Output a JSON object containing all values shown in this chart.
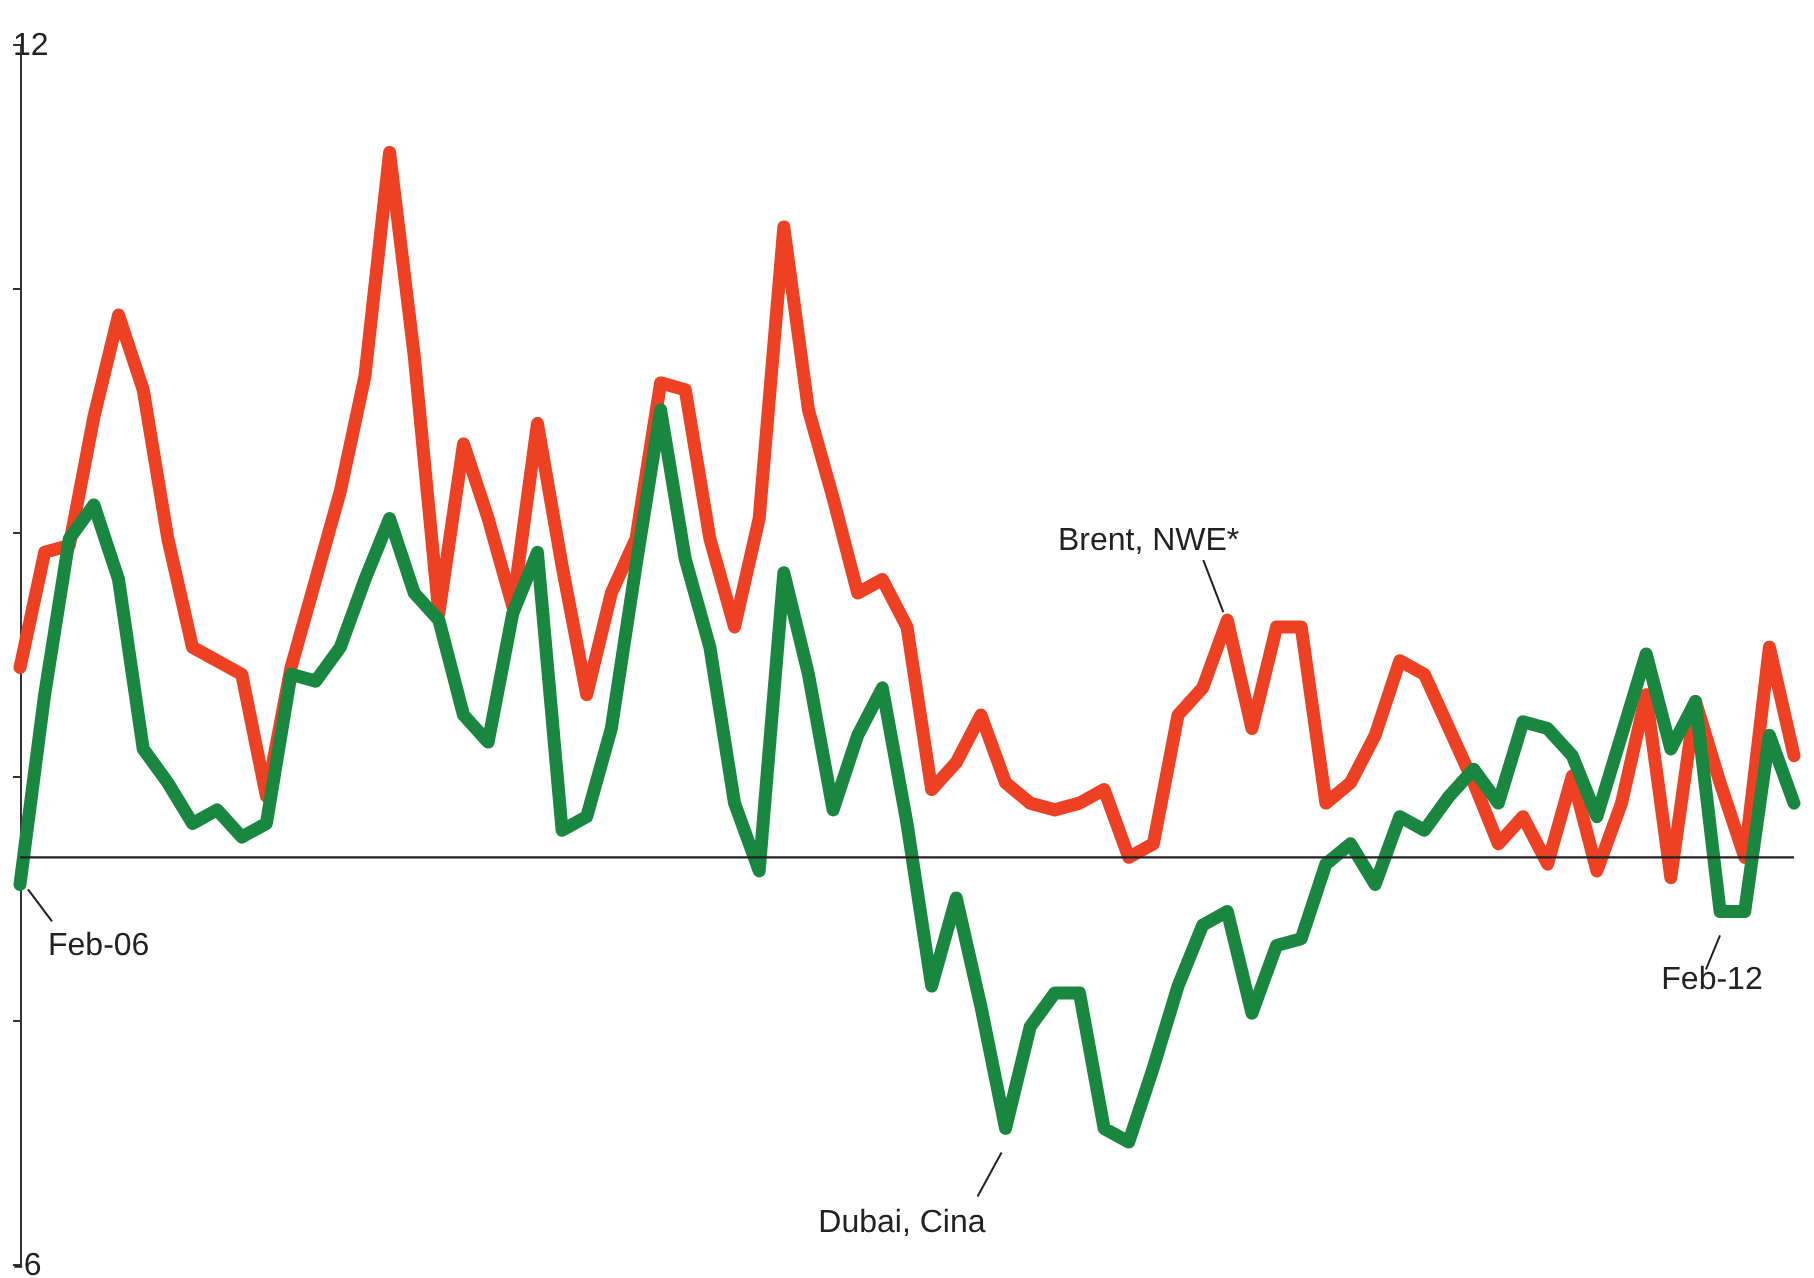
{
  "chart_data": {
    "type": "line",
    "categories": [
      null,
      null,
      null,
      null,
      null,
      null,
      null,
      null,
      null,
      null,
      null,
      null,
      null,
      null,
      null,
      null,
      null,
      null,
      null,
      null,
      null,
      null,
      null,
      null,
      null,
      null,
      null,
      null,
      null,
      null,
      null,
      null,
      null,
      null,
      null,
      null,
      null,
      null,
      null,
      null,
      null,
      null,
      null,
      null,
      null,
      null,
      null,
      null,
      null,
      null,
      null,
      null,
      null,
      null,
      null,
      null,
      null,
      null,
      null,
      null,
      null,
      null,
      null,
      null,
      null,
      null,
      null,
      null,
      null,
      null,
      null,
      null,
      null
    ],
    "series": [
      {
        "name": "Brent, NWE*",
        "color": "#ee4023",
        "values": [
          2.8,
          4.5,
          4.6,
          6.5,
          8.0,
          6.9,
          4.7,
          3.1,
          2.9,
          2.7,
          0.9,
          2.8,
          4.1,
          5.4,
          7.1,
          10.4,
          7.4,
          3.6,
          6.1,
          5.0,
          3.7,
          6.4,
          4.3,
          2.4,
          3.9,
          4.7,
          7.0,
          6.9,
          4.7,
          3.4,
          5.0,
          9.3,
          6.6,
          5.3,
          3.9,
          4.1,
          3.4,
          1.0,
          1.4,
          2.1,
          1.1,
          0.8,
          0.7,
          0.8,
          1.0,
          0.0,
          0.2,
          2.1,
          2.5,
          3.5,
          1.9,
          3.4,
          3.4,
          0.8,
          1.1,
          1.8,
          2.9,
          2.7,
          1.9,
          1.1,
          0.2,
          0.6,
          -0.1,
          1.2,
          -0.2,
          0.8,
          2.4,
          -0.3,
          2.3,
          1.1,
          0.0,
          3.1,
          1.5
        ]
      },
      {
        "name": "Dubai, Cina",
        "color": "#1a8741",
        "values": [
          -0.4,
          2.4,
          4.7,
          5.2,
          4.1,
          1.6,
          1.1,
          0.5,
          0.7,
          0.3,
          0.5,
          2.7,
          2.6,
          3.1,
          4.1,
          5.0,
          3.9,
          3.5,
          2.1,
          1.7,
          3.6,
          4.5,
          0.4,
          0.6,
          1.9,
          4.3,
          6.6,
          4.4,
          3.1,
          0.8,
          -0.2,
          4.2,
          2.7,
          0.7,
          1.8,
          2.5,
          0.5,
          -1.9,
          -0.6,
          -2.2,
          -4.0,
          -2.5,
          -2.0,
          -2.0,
          -4.0,
          -4.2,
          -3.1,
          -1.9,
          -1.0,
          -0.8,
          -2.3,
          -1.3,
          -1.2,
          -0.1,
          0.2,
          -0.4,
          0.6,
          0.4,
          0.9,
          1.3,
          0.8,
          2.0,
          1.9,
          1.5,
          0.6,
          1.8,
          3.0,
          1.6,
          2.3,
          -0.8,
          -0.8,
          1.8,
          0.8
        ]
      }
    ],
    "ylim": [
      -6,
      12
    ],
    "yticks": [
      12,
      {
        "value": 8.4,
        "label": null
      },
      {
        "value": 4.8,
        "label": null
      },
      {
        "value": 1.2,
        "label": null
      },
      {
        "value": -2.4,
        "label": null
      },
      -6
    ],
    "tick_labels": "y",
    "grid": false,
    "line_style": "solid",
    "ref_lines": [
      {
        "axis": "y",
        "value": 0
      }
    ],
    "annotations": [
      "Feb-06",
      "Feb-12"
    ]
  }
}
